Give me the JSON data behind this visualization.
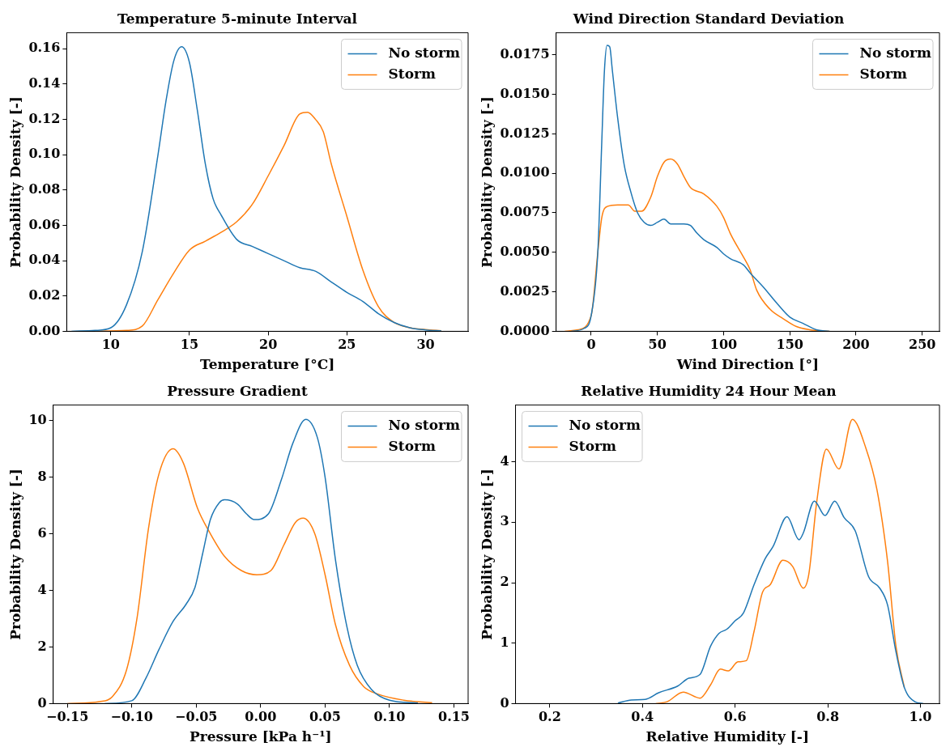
{
  "chart_data": [
    {
      "type": "line",
      "title": "Temperature 5-minute Interval",
      "xlabel": "Temperature [°C]",
      "ylabel": "Probability Density [-]",
      "xlim": [
        7.2,
        32.7
      ],
      "xticks": [
        10,
        15,
        20,
        25,
        30
      ],
      "ylim": [
        0,
        0.169
      ],
      "yticks": [
        {
          "value": 0,
          "label": "0.00"
        },
        {
          "value": 0.02,
          "label": "0.02"
        },
        {
          "value": 0.04,
          "label": "0.04"
        },
        {
          "value": 0.06,
          "label": "0.06"
        },
        {
          "value": 0.08,
          "label": "0.08"
        },
        {
          "value": 0.1,
          "label": "0.10"
        },
        {
          "value": 0.12,
          "label": "0.12"
        },
        {
          "value": 0.14,
          "label": "0.14"
        },
        {
          "value": 0.16,
          "label": "0.16"
        }
      ],
      "legend": "top right",
      "series": [
        {
          "name": "No storm",
          "color": "#1f77b4",
          "x": [
            7.5,
            9,
            10,
            11,
            12,
            13,
            13.5,
            14,
            14.5,
            15,
            15.5,
            16,
            16.5,
            17,
            18,
            19,
            20,
            21,
            22,
            23,
            24,
            25,
            26,
            27,
            28,
            29,
            30,
            31
          ],
          "values": [
            0,
            0.0005,
            0.002,
            0.015,
            0.045,
            0.1,
            0.13,
            0.153,
            0.161,
            0.152,
            0.125,
            0.095,
            0.075,
            0.066,
            0.052,
            0.048,
            0.044,
            0.04,
            0.036,
            0.034,
            0.028,
            0.022,
            0.017,
            0.01,
            0.005,
            0.002,
            0.0008,
            0.0002
          ]
        },
        {
          "name": "Storm",
          "color": "#ff7f0e",
          "x": [
            9,
            11,
            12,
            13,
            14,
            15,
            16,
            17,
            18,
            19,
            20,
            21,
            22,
            22.5,
            23,
            23.5,
            24,
            25,
            26,
            27,
            28,
            29,
            30,
            31
          ],
          "values": [
            0,
            0.0005,
            0.003,
            0.018,
            0.033,
            0.046,
            0.051,
            0.056,
            0.062,
            0.072,
            0.088,
            0.105,
            0.123,
            0.124,
            0.12,
            0.113,
            0.095,
            0.065,
            0.035,
            0.014,
            0.005,
            0.002,
            0.001,
            0.0003
          ]
        }
      ]
    },
    {
      "type": "line",
      "title": "Wind Direction Standard Deviation",
      "xlabel": "Wind Direction [°]",
      "ylabel": "Probability Density [-]",
      "xlim": [
        -26.5,
        263
      ],
      "xticks": [
        0,
        50,
        100,
        150,
        200,
        250
      ],
      "ylim": [
        0,
        0.0189
      ],
      "yticks": [
        {
          "value": 0,
          "label": "0.0000"
        },
        {
          "value": 0.0025,
          "label": "0.0025"
        },
        {
          "value": 0.005,
          "label": "0.0050"
        },
        {
          "value": 0.0075,
          "label": "0.0075"
        },
        {
          "value": 0.01,
          "label": "0.0100"
        },
        {
          "value": 0.0125,
          "label": "0.0125"
        },
        {
          "value": 0.015,
          "label": "0.0150"
        },
        {
          "value": 0.0175,
          "label": "0.0175"
        }
      ],
      "legend": "top right",
      "series": [
        {
          "name": "No storm",
          "color": "#1f77b4",
          "x": [
            -15,
            -5,
            0,
            5,
            8,
            10,
            12,
            14,
            16,
            20,
            25,
            30,
            35,
            40,
            45,
            50,
            55,
            60,
            70,
            75,
            80,
            85,
            95,
            100,
            105,
            115,
            120,
            130,
            140,
            150,
            160,
            170,
            180
          ],
          "values": [
            0,
            0.0002,
            0.001,
            0.005,
            0.012,
            0.0165,
            0.0181,
            0.018,
            0.0165,
            0.0135,
            0.0105,
            0.0088,
            0.0075,
            0.0069,
            0.0067,
            0.0069,
            0.0071,
            0.0068,
            0.0068,
            0.0067,
            0.0062,
            0.0058,
            0.0053,
            0.0049,
            0.0046,
            0.0042,
            0.0037,
            0.0028,
            0.0018,
            0.0009,
            0.0005,
            0.0001,
            0
          ]
        },
        {
          "name": "Storm",
          "color": "#ff7f0e",
          "x": [
            -20,
            -10,
            0,
            5,
            8,
            12,
            20,
            28,
            33,
            38,
            45,
            50,
            55,
            60,
            65,
            70,
            75,
            85,
            95,
            100,
            105,
            115,
            120,
            125,
            135,
            145,
            155,
            165,
            180
          ],
          "values": [
            0,
            0.0001,
            0.001,
            0.005,
            0.0072,
            0.0079,
            0.008,
            0.008,
            0.0076,
            0.0076,
            0.0085,
            0.0098,
            0.0107,
            0.0109,
            0.0106,
            0.0098,
            0.0091,
            0.0087,
            0.0079,
            0.0072,
            0.0062,
            0.0047,
            0.0039,
            0.0026,
            0.0014,
            0.0008,
            0.0003,
            0.0001,
            0
          ]
        }
      ]
    },
    {
      "type": "line",
      "title": "Pressure Gradient",
      "xlabel": "Pressure [kPa h⁻¹]",
      "ylabel": "Probability Density [-]",
      "xlim": [
        -0.161,
        0.161
      ],
      "xticks": [
        {
          "value": -0.15,
          "label": "−0.15"
        },
        {
          "value": -0.1,
          "label": "−0.10"
        },
        {
          "value": -0.05,
          "label": "−0.05"
        },
        {
          "value": 0,
          "label": "0.00"
        },
        {
          "value": 0.05,
          "label": "0.05"
        },
        {
          "value": 0.1,
          "label": "0.10"
        },
        {
          "value": 0.15,
          "label": "0.15"
        }
      ],
      "ylim": [
        0,
        10.55
      ],
      "yticks": [
        0,
        2,
        4,
        6,
        8,
        10
      ],
      "legend": "top right",
      "series": [
        {
          "name": "No storm",
          "color": "#1f77b4",
          "x": [
            -0.121,
            -0.1,
            -0.089,
            -0.079,
            -0.068,
            -0.058,
            -0.051,
            -0.045,
            -0.039,
            -0.032,
            -0.028,
            -0.018,
            -0.011,
            -0.005,
            0.006,
            0.016,
            0.025,
            0.035,
            0.044,
            0.05,
            0.058,
            0.067,
            0.075,
            0.086,
            0.1,
            0.122
          ],
          "values": [
            0,
            0.1,
            0.9,
            1.9,
            2.9,
            3.5,
            4.1,
            5.3,
            6.5,
            7.1,
            7.2,
            7.05,
            6.7,
            6.5,
            6.7,
            7.9,
            9.2,
            10.04,
            9.4,
            8,
            5.1,
            2.7,
            1.35,
            0.5,
            0.12,
            0.02
          ]
        },
        {
          "name": "Storm",
          "color": "#ff7f0e",
          "x": [
            -0.15,
            -0.125,
            -0.115,
            -0.104,
            -0.096,
            -0.087,
            -0.079,
            -0.068,
            -0.06,
            -0.049,
            -0.039,
            -0.028,
            -0.015,
            -0.003,
            0.008,
            0.018,
            0.027,
            0.033,
            0.042,
            0.05,
            0.058,
            0.069,
            0.08,
            0.09,
            0.111,
            0.133
          ],
          "values": [
            0,
            0.07,
            0.25,
            1.2,
            3,
            6.2,
            8.1,
            9,
            8.5,
            6.9,
            6,
            5.2,
            4.7,
            4.55,
            4.7,
            5.6,
            6.4,
            6.55,
            6,
            4.55,
            2.8,
            1.35,
            0.6,
            0.35,
            0.12,
            0.03
          ]
        }
      ]
    },
    {
      "type": "line",
      "title": "Relative Humidity 24 Hour Mean",
      "xlabel": "Relative Humidity [-]",
      "ylabel": "Probability Density [-]",
      "xlim": [
        0.126,
        1.041
      ],
      "xticks": [
        {
          "value": 0.2,
          "label": "0.2"
        },
        {
          "value": 0.4,
          "label": "0.4"
        },
        {
          "value": 0.6,
          "label": "0.6"
        },
        {
          "value": 0.8,
          "label": "0.8"
        },
        {
          "value": 1,
          "label": "1.0"
        }
      ],
      "ylim": [
        0,
        4.94
      ],
      "yticks": [
        0,
        1,
        2,
        3,
        4
      ],
      "legend": "top left",
      "series": [
        {
          "name": "No storm",
          "color": "#1f77b4",
          "x": [
            0.347,
            0.376,
            0.406,
            0.435,
            0.476,
            0.5,
            0.524,
            0.547,
            0.565,
            0.582,
            0.6,
            0.618,
            0.641,
            0.665,
            0.682,
            0.712,
            0.738,
            0.747,
            0.771,
            0.794,
            0.815,
            0.835,
            0.859,
            0.888,
            0.912,
            0.929,
            0.947,
            0.965,
            0.988,
            1.006
          ],
          "values": [
            0.01,
            0.06,
            0.07,
            0.18,
            0.29,
            0.42,
            0.48,
            0.95,
            1.16,
            1.23,
            1.37,
            1.5,
            1.97,
            2.4,
            2.6,
            3.09,
            2.71,
            2.82,
            3.35,
            3.11,
            3.35,
            3.08,
            2.86,
            2.1,
            1.91,
            1.63,
            0.86,
            0.27,
            0.03,
            0
          ]
        },
        {
          "name": "Storm",
          "color": "#ff7f0e",
          "x": [
            0.429,
            0.453,
            0.488,
            0.524,
            0.547,
            0.568,
            0.585,
            0.606,
            0.624,
            0.641,
            0.659,
            0.676,
            0.703,
            0.724,
            0.747,
            0.759,
            0.776,
            0.797,
            0.824,
            0.853,
            0.882,
            0.906,
            0.929,
            0.947,
            0.965
          ],
          "values": [
            0,
            0.03,
            0.19,
            0.09,
            0.31,
            0.57,
            0.54,
            0.69,
            0.71,
            1.2,
            1.84,
            1.97,
            2.37,
            2.27,
            1.91,
            2.14,
            3.33,
            4.21,
            3.88,
            4.7,
            4.23,
            3.54,
            2.35,
            0.95,
            0.27
          ]
        }
      ]
    }
  ]
}
